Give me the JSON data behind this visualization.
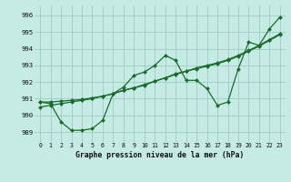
{
  "title": "Graphe pression niveau de la mer (hPa)",
  "bg_color": "#c5ebe4",
  "grid_color": "#9dccc4",
  "line_color": "#1a6b2a",
  "xlim": [
    -0.5,
    23.5
  ],
  "ylim": [
    988.4,
    996.6
  ],
  "xticks": [
    0,
    1,
    2,
    3,
    4,
    5,
    6,
    7,
    8,
    9,
    10,
    11,
    12,
    13,
    14,
    15,
    16,
    17,
    18,
    19,
    20,
    21,
    22,
    23
  ],
  "yticks": [
    989,
    990,
    991,
    992,
    993,
    994,
    995,
    996
  ],
  "y_wavy": [
    990.8,
    990.7,
    989.6,
    989.1,
    989.1,
    989.2,
    989.7,
    991.3,
    991.7,
    992.4,
    992.6,
    993.0,
    993.6,
    993.3,
    992.1,
    992.1,
    991.6,
    990.6,
    990.8,
    992.8,
    994.4,
    994.2,
    995.2,
    995.9
  ],
  "y_line1": [
    990.8,
    990.8,
    990.85,
    990.9,
    990.95,
    991.05,
    991.15,
    991.3,
    991.5,
    991.65,
    991.85,
    992.05,
    992.25,
    992.5,
    992.65,
    992.85,
    993.0,
    993.15,
    993.35,
    993.6,
    993.9,
    994.2,
    994.55,
    994.9
  ],
  "y_line2": [
    990.5,
    990.6,
    990.7,
    990.8,
    990.9,
    991.0,
    991.15,
    991.3,
    991.5,
    991.65,
    991.8,
    992.05,
    992.25,
    992.45,
    992.65,
    992.8,
    992.95,
    993.1,
    993.3,
    993.55,
    993.85,
    994.15,
    994.5,
    994.85
  ]
}
